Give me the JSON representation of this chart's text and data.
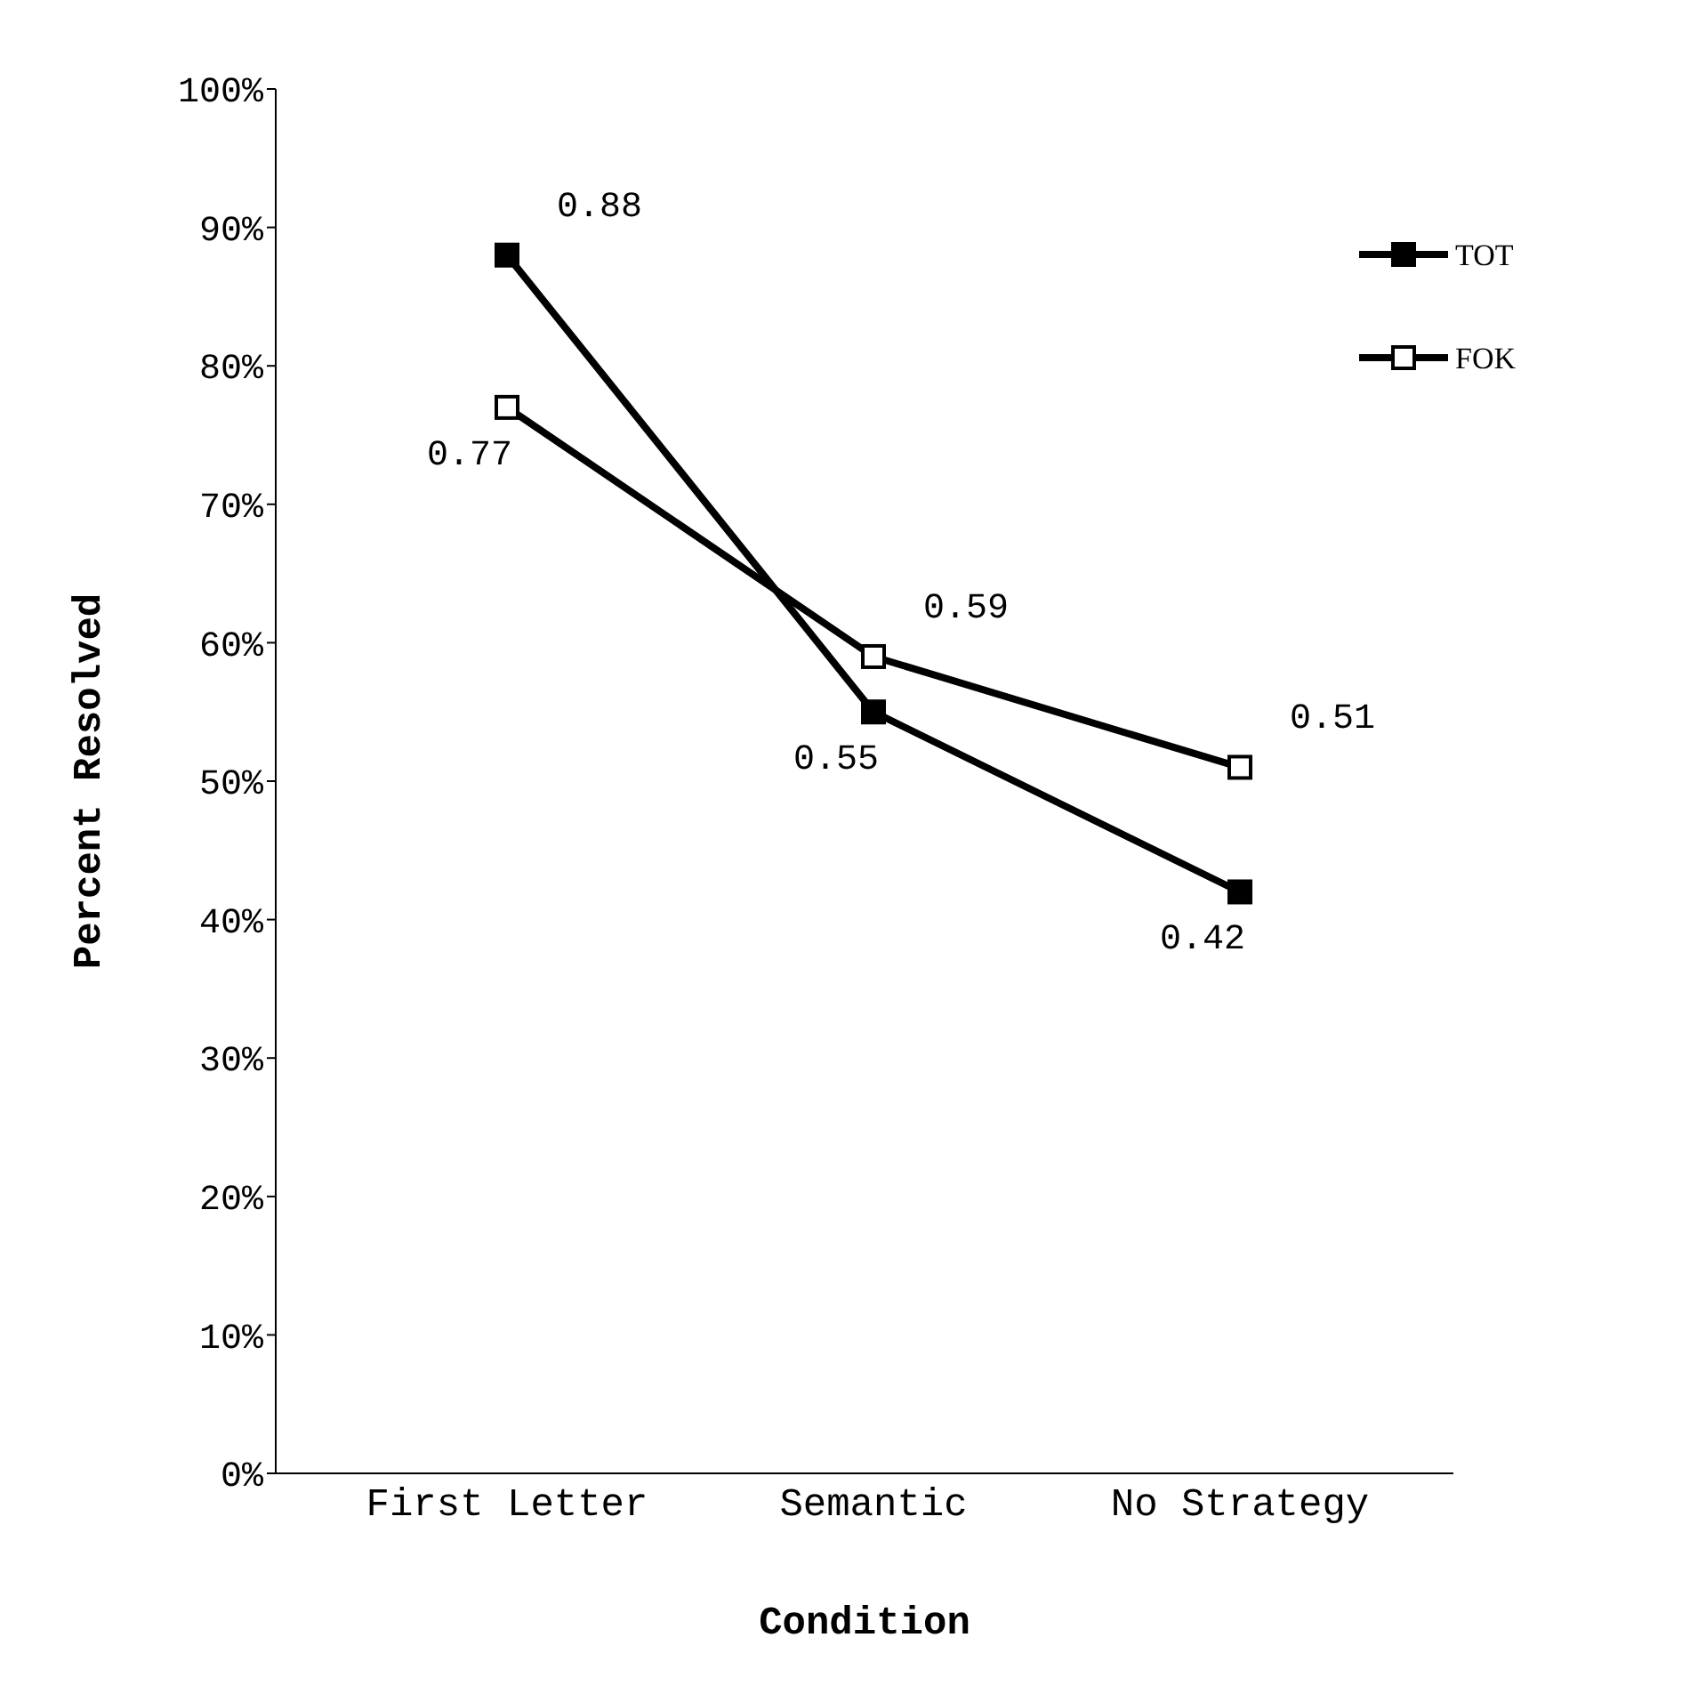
{
  "chart_data": {
    "type": "line",
    "xlabel": "Condition",
    "ylabel": "Percent Resolved",
    "categories": [
      "First Letter",
      "Semantic",
      "No Strategy"
    ],
    "series": [
      {
        "name": "TOT",
        "color": "#000000",
        "values": [
          0.88,
          0.55,
          0.42
        ]
      },
      {
        "name": "FOK",
        "color": "#000000",
        "values": [
          0.77,
          0.59,
          0.51
        ]
      }
    ],
    "ylim": [
      0,
      1
    ],
    "yticks": [
      {
        "value": 0,
        "label": "0%"
      },
      {
        "value": 0.1,
        "label": "10%"
      },
      {
        "value": 0.2,
        "label": "20%"
      },
      {
        "value": 0.3,
        "label": "30%"
      },
      {
        "value": 0.4,
        "label": "40%"
      },
      {
        "value": 0.5,
        "label": "50%"
      },
      {
        "value": 0.6,
        "label": "60%"
      },
      {
        "value": 0.7,
        "label": "70%"
      },
      {
        "value": 0.8,
        "label": "80%"
      },
      {
        "value": 0.9,
        "label": "90%"
      },
      {
        "value": 1,
        "label": "100%"
      }
    ],
    "grid": false,
    "legend": "top right",
    "marker": "square",
    "line_style": "solid",
    "data_labels": true
  }
}
